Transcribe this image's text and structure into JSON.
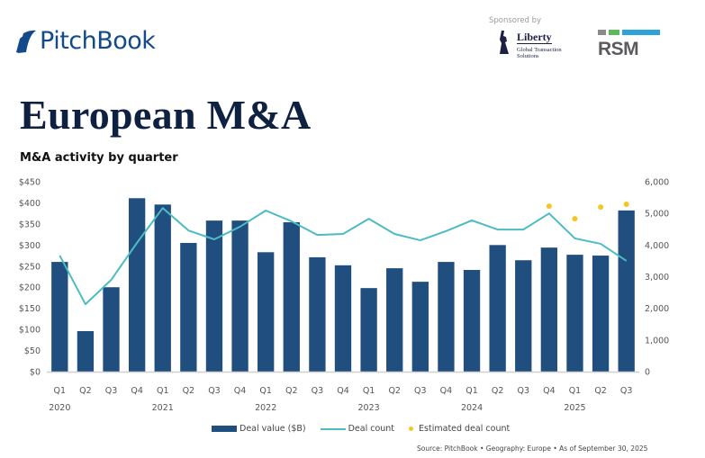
{
  "brand": {
    "name": "PitchBook",
    "color": "#134a8a"
  },
  "sponsors": {
    "label": "Sponsored by",
    "liberty": {
      "name": "Liberty",
      "subtitle": "Global Transaction Solutions"
    },
    "rsm": {
      "name": "RSM",
      "bar_colors": [
        "#8a8a8a",
        "#5cb85c",
        "#2ea3d9"
      ]
    }
  },
  "page_title": "European M&A",
  "chart_subtitle": "M&A activity by quarter",
  "chart_data": {
    "type": "bar",
    "title": "M&A activity by quarter",
    "xlabel": "",
    "ylabel": "Deal value ($B)",
    "y2label": "Deal count",
    "ylim": [
      0,
      450
    ],
    "y2lim": [
      0,
      6000
    ],
    "yticks": [
      "$0",
      "$50",
      "$100",
      "$150",
      "$200",
      "$250",
      "$300",
      "$350",
      "$400",
      "$450"
    ],
    "y2ticks": [
      "0",
      "1,000",
      "2,000",
      "3,000",
      "4,000",
      "5,000",
      "6,000"
    ],
    "grid": false,
    "categories": [
      "Q1",
      "Q2",
      "Q3",
      "Q4",
      "Q1",
      "Q2",
      "Q3",
      "Q4",
      "Q1",
      "Q2",
      "Q3",
      "Q4",
      "Q1",
      "Q2",
      "Q3",
      "Q4",
      "Q1",
      "Q2",
      "Q3",
      "Q4",
      "Q1",
      "Q2",
      "Q3"
    ],
    "year_labels": [
      {
        "label": "2020",
        "index": 0
      },
      {
        "label": "2021",
        "index": 4
      },
      {
        "label": "2022",
        "index": 8
      },
      {
        "label": "2023",
        "index": 12
      },
      {
        "label": "2024",
        "index": 16
      },
      {
        "label": "2025",
        "index": 20
      }
    ],
    "series": [
      {
        "name": "Deal value ($B)",
        "type": "bar",
        "axis": "left",
        "color": "#1f4e7f",
        "values": [
          260,
          96,
          200,
          411,
          396,
          305,
          358,
          358,
          283,
          354,
          271,
          252,
          198,
          245,
          213,
          260,
          241,
          300,
          264,
          294,
          277,
          275,
          382
        ]
      },
      {
        "name": "Deal count",
        "type": "line",
        "axis": "right",
        "color": "#4cbcc2",
        "values": [
          3670,
          2130,
          2900,
          4070,
          5170,
          4460,
          4180,
          4580,
          5090,
          4750,
          4320,
          4350,
          4830,
          4350,
          4150,
          4440,
          4780,
          4490,
          4490,
          5000,
          4210,
          4040,
          3500
        ]
      },
      {
        "name": "Estimated deal count",
        "type": "scatter",
        "axis": "right",
        "color": "#f2c623",
        "values": [
          null,
          null,
          null,
          null,
          null,
          null,
          null,
          null,
          null,
          null,
          null,
          null,
          null,
          null,
          null,
          null,
          null,
          null,
          null,
          5230,
          4830,
          5200,
          5290
        ]
      }
    ],
    "legend_position": "bottom"
  },
  "legend": [
    {
      "label": "Deal value ($B)",
      "kind": "bar"
    },
    {
      "label": "Deal count",
      "kind": "line"
    },
    {
      "label": "Estimated deal count",
      "kind": "dot"
    }
  ],
  "source": "Source: PitchBook  •  Geography: Europe  •  As of September 30, 2025"
}
